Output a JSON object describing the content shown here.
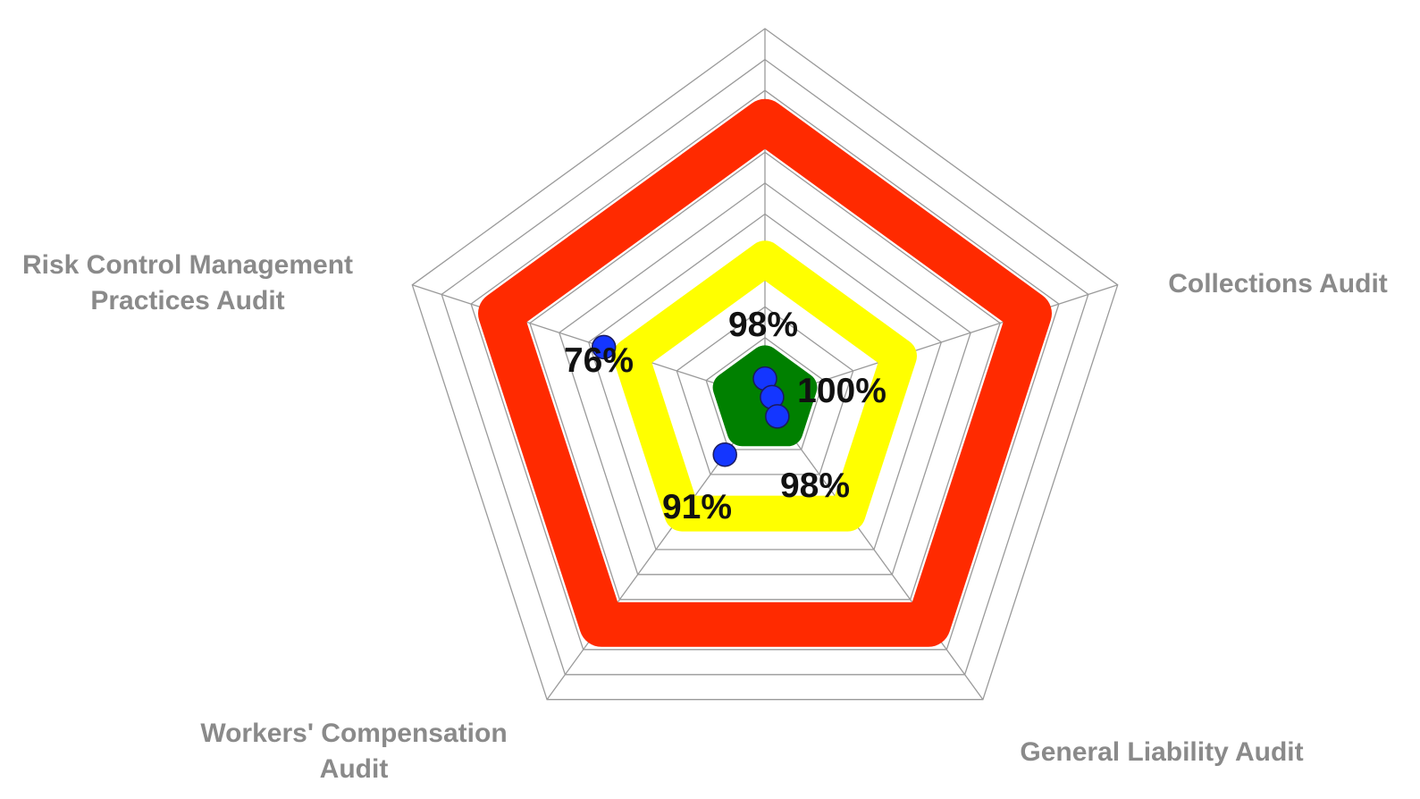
{
  "chart_data": {
    "type": "radar",
    "categories": [
      "",
      "Collections Audit",
      "General Liability Audit",
      "Workers' Compensation Audit",
      "Risk Control Management Practices Audit"
    ],
    "category_lines": [
      [
        ""
      ],
      [
        "Collections Audit"
      ],
      [
        "General Liability Audit"
      ],
      [
        "Workers' Compensation",
        "Audit"
      ],
      [
        "Risk Control Management",
        "Practices Audit"
      ]
    ],
    "series": [
      {
        "values": [
          98,
          100,
          98,
          91,
          76
        ],
        "labels": [
          "98%",
          "100%",
          "98%",
          "91%",
          "76%"
        ]
      }
    ],
    "bands": [
      {
        "level": 0.75,
        "color": "#ff2a00"
      },
      {
        "level": 0.38,
        "color": "#ffff00"
      },
      {
        "level": 0.105,
        "color": "#008000"
      }
    ],
    "grid_rings": 12,
    "grid": true,
    "colors": {
      "marker": "#1436ff",
      "marker_edge": "#1a1a5c",
      "grid": "#9a9a9a",
      "axis_label": "#8a8a8a",
      "value_label": "#111111"
    }
  }
}
